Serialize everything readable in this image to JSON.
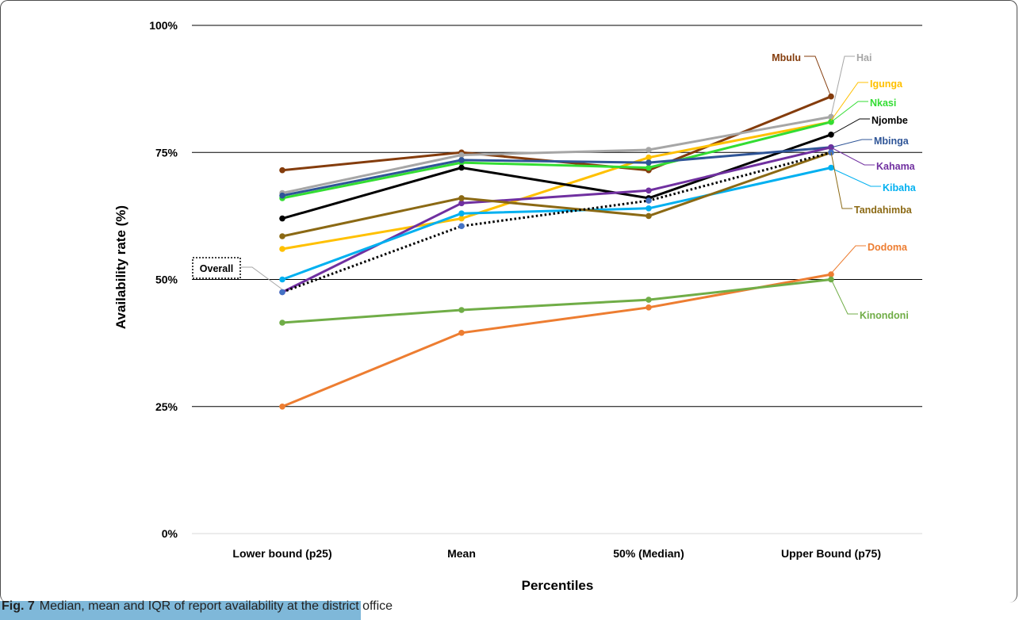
{
  "caption": {
    "label": "Fig. 7",
    "text": "Median, mean and IQR of report availability at the district office"
  },
  "chart_data": {
    "type": "line",
    "xlabel": "Percentiles",
    "ylabel": "Availability rate (%)",
    "categories": [
      "Lower bound (p25)",
      "Mean",
      "50% (Median)",
      "Upper Bound (p75)"
    ],
    "ylim": [
      0,
      100
    ],
    "yticks": [
      0,
      25,
      50,
      75,
      100
    ],
    "ytick_labels": [
      "0%",
      "25%",
      "50%",
      "75%",
      "100%"
    ],
    "grid": "horizontal",
    "series": [
      {
        "name": "Mbulu",
        "color": "#843c0c",
        "values": [
          71.5,
          75.0,
          71.5,
          86.0
        ]
      },
      {
        "name": "Hai",
        "color": "#a6a6a6",
        "values": [
          67.0,
          74.5,
          75.5,
          82.0
        ]
      },
      {
        "name": "Igunga",
        "color": "#ffc000",
        "values": [
          56.0,
          62.0,
          74.0,
          81.0
        ]
      },
      {
        "name": "Nkasi",
        "color": "#33dd33",
        "values": [
          66.0,
          73.0,
          72.0,
          81.0
        ]
      },
      {
        "name": "Njombe",
        "color": "#000000",
        "values": [
          62.0,
          72.0,
          66.0,
          78.5
        ]
      },
      {
        "name": "Mbinga",
        "color": "#2f5597",
        "values": [
          66.5,
          73.5,
          73.0,
          76.0
        ]
      },
      {
        "name": "Kahama",
        "color": "#7030a0",
        "values": [
          47.5,
          65.0,
          67.5,
          76.0
        ]
      },
      {
        "name": "Kibaha",
        "color": "#00b0f0",
        "values": [
          50.0,
          63.0,
          64.0,
          72.0
        ]
      },
      {
        "name": "Tandahimba",
        "color": "#8b6914",
        "values": [
          58.5,
          66.0,
          62.5,
          75.0
        ]
      },
      {
        "name": "Dodoma",
        "color": "#ed7d31",
        "values": [
          25.0,
          39.5,
          44.5,
          51.0
        ]
      },
      {
        "name": "Kinondoni",
        "color": "#70ad47",
        "values": [
          41.5,
          44.0,
          46.0,
          50.0
        ]
      },
      {
        "name": "Overall",
        "color": "#000000",
        "dashed": true,
        "values": [
          47.5,
          60.5,
          65.5,
          75.0
        ]
      }
    ]
  }
}
